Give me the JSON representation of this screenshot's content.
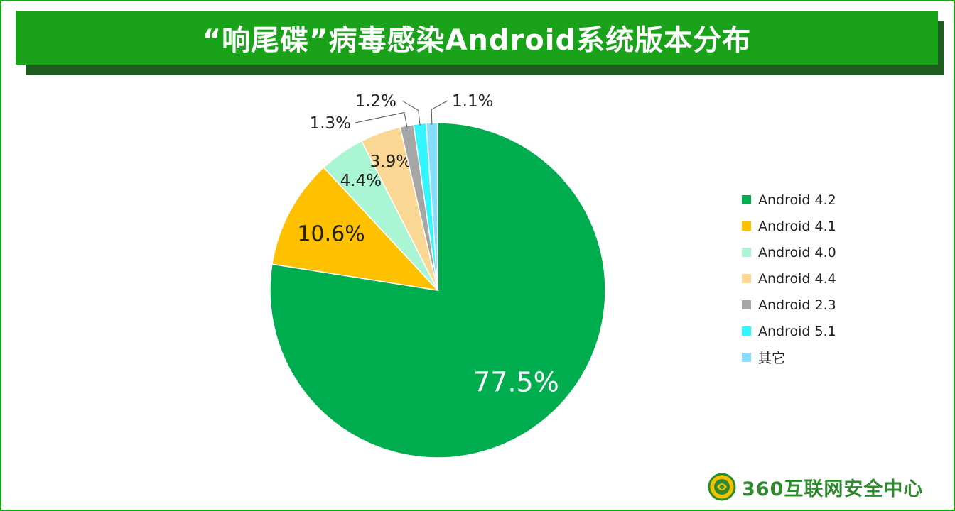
{
  "header": {
    "title": "“响尾碟”病毒感染Android系统版本分布"
  },
  "brand": {
    "text": "360互联网安全中心",
    "logo_icon": "globe-leaf-icon"
  },
  "colors": {
    "title_bar": "#1aa31a",
    "frame": "#1aa31a"
  },
  "chart_data": {
    "type": "pie",
    "title": "“响尾碟”病毒感染Android系统版本分布",
    "legend_position": "right",
    "start_angle": "top",
    "direction": "clockwise",
    "slices": [
      {
        "name": "Android 4.2",
        "value": 77.5,
        "label": "77.5%",
        "color": "#00ad4e"
      },
      {
        "name": "Android 4.1",
        "value": 10.6,
        "label": "10.6%",
        "color": "#ffc000"
      },
      {
        "name": "Android 4.0",
        "value": 4.4,
        "label": "4.4%",
        "color": "#aaf5d4"
      },
      {
        "name": "Android 4.4",
        "value": 3.9,
        "label": "3.9%",
        "color": "#fad893"
      },
      {
        "name": "Android 2.3",
        "value": 1.3,
        "label": "1.3%",
        "color": "#a6a6a6"
      },
      {
        "name": "Android 5.1",
        "value": 1.2,
        "label": "1.2%",
        "color": "#33f5ff"
      },
      {
        "name": "其它",
        "value": 1.1,
        "label": "1.1%",
        "color": "#88ddff"
      }
    ]
  }
}
